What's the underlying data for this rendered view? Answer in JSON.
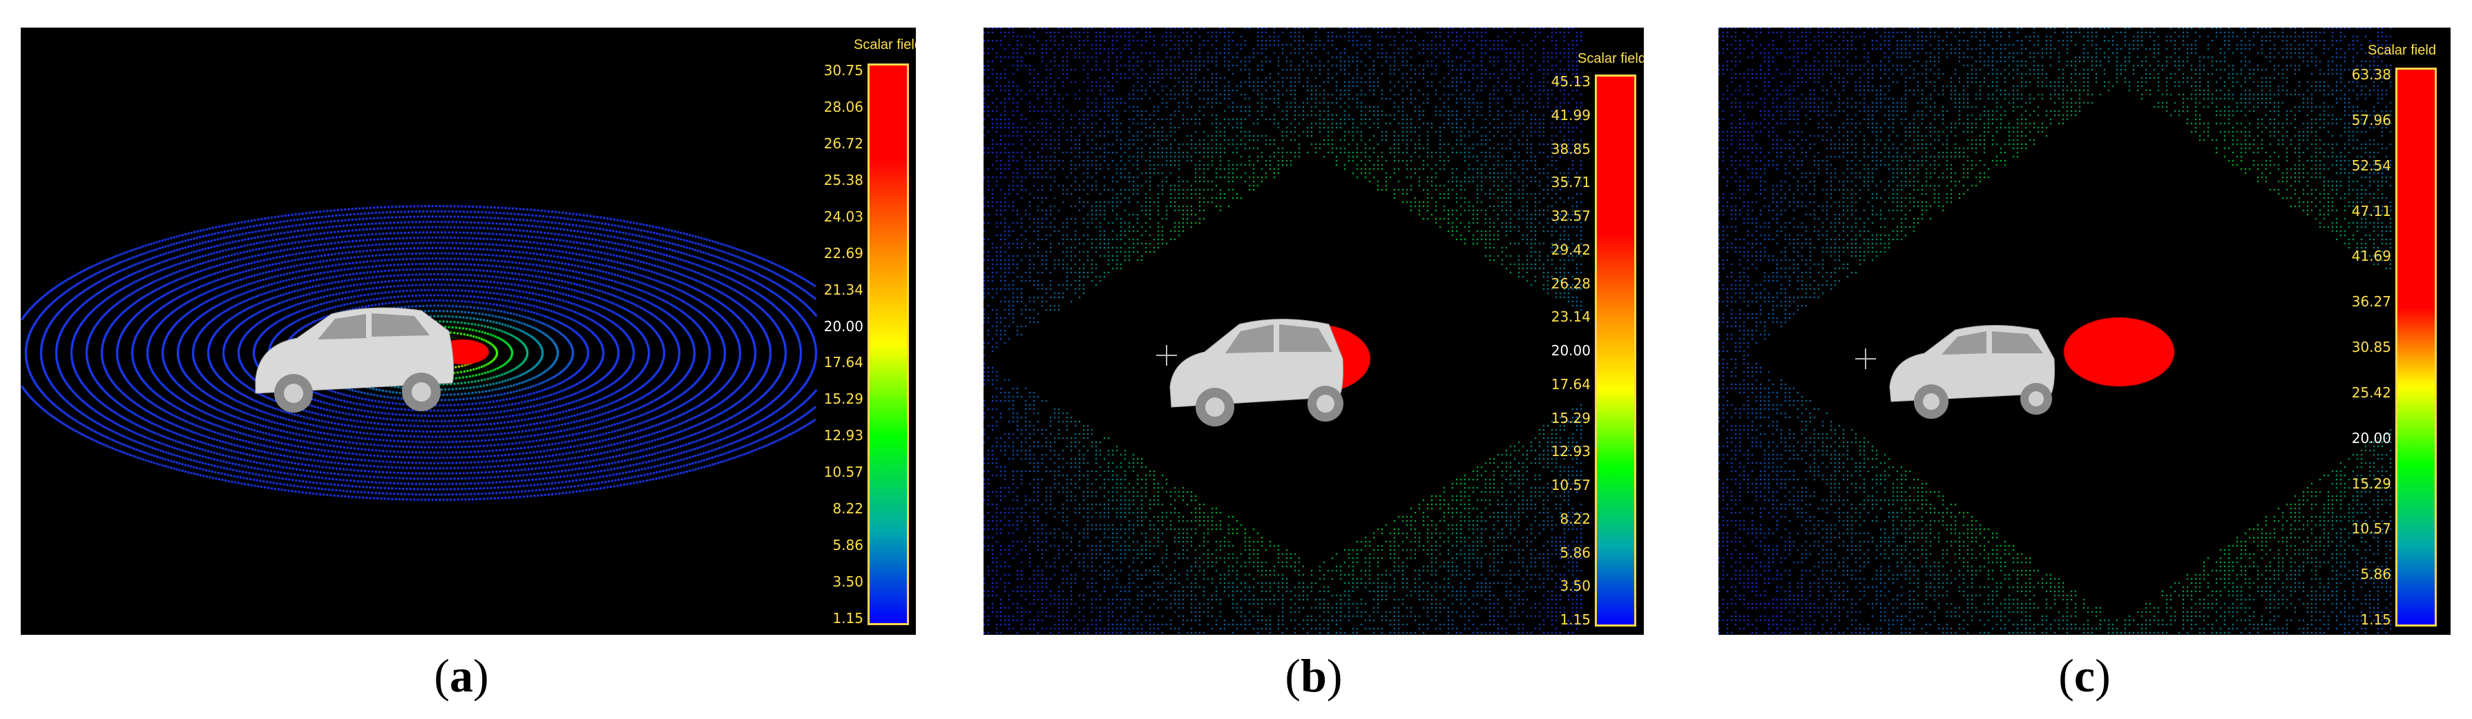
{
  "panels": [
    {
      "id": "a",
      "caption": "a",
      "legend_title": "Scalar field",
      "ticks": [
        "30.75",
        "28.06",
        "26.72",
        "25.38",
        "24.03",
        "22.69",
        "21.34",
        "20.00",
        "17.64",
        "15.29",
        "12.93",
        "10.57",
        "8.22",
        "5.86",
        "3.50",
        "1.15"
      ],
      "highlight_tick": "20.00",
      "colormap": [
        "#ff0000",
        "#ff0000",
        "#ff8800",
        "#ffff00",
        "#00ff00",
        "#00aaaa",
        "#0000ff"
      ]
    },
    {
      "id": "b",
      "caption": "b",
      "legend_title": "Scalar field",
      "ticks": [
        "45.13",
        "41.99",
        "38.85",
        "35.71",
        "32.57",
        "29.42",
        "26.28",
        "23.14",
        "20.00",
        "17.64",
        "15.29",
        "12.93",
        "10.57",
        "8.22",
        "5.86",
        "3.50",
        "1.15"
      ],
      "highlight_tick": "20.00",
      "colormap": [
        "#ff0000",
        "#ff0000",
        "#ff0000",
        "#ff8800",
        "#ffff00",
        "#00ff00",
        "#00aaaa",
        "#0000ff"
      ]
    },
    {
      "id": "c",
      "caption": "c",
      "legend_title": "Scalar field",
      "ticks": [
        "63.38",
        "57.96",
        "52.54",
        "47.11",
        "41.69",
        "36.27",
        "30.85",
        "25.42",
        "20.00",
        "15.29",
        "10.57",
        "5.86",
        "1.15"
      ],
      "highlight_tick": "20.00",
      "colormap": [
        "#ff0000",
        "#ff0000",
        "#ff0000",
        "#ff0000",
        "#ffff00",
        "#00ff00",
        "#00aaaa",
        "#0000ff"
      ]
    }
  ],
  "colors": {
    "caption_text": "#000000",
    "legend_text": "#ffe14a",
    "legend_border": "#ffd84a",
    "background": "#000000",
    "points_far": "#1f3dff"
  }
}
